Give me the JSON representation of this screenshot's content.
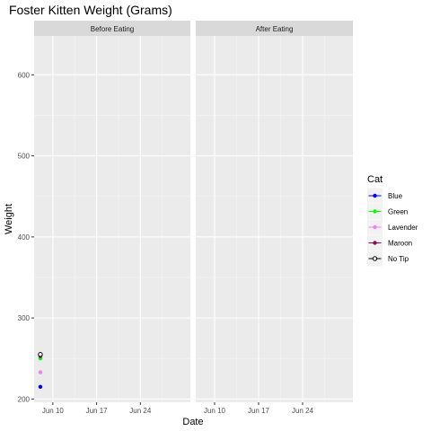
{
  "chart_data": {
    "type": "scatter",
    "title": "Foster Kitten Weight (Grams)",
    "xlabel": "Date",
    "ylabel": "Weight",
    "facets": [
      "Before Eating",
      "After Eating"
    ],
    "x_ticks": [
      "Jun 10",
      "Jun 17",
      "Jun 24"
    ],
    "y_ticks": [
      200,
      300,
      400,
      500,
      600
    ],
    "ylim": [
      196,
      648
    ],
    "xlim": [
      "2018-06-07",
      "2018-07-02"
    ],
    "grid": true,
    "legend_title": "Cat",
    "legend_position": "right",
    "series": [
      {
        "name": "Blue",
        "color": "#0000FF",
        "points": [
          {
            "facet": "Before Eating",
            "x": "2018-06-08",
            "y": 215
          }
        ]
      },
      {
        "name": "Green",
        "color": "#00FF00",
        "points": [
          {
            "facet": "Before Eating",
            "x": "2018-06-08",
            "y": 250
          }
        ]
      },
      {
        "name": "Lavender",
        "color": "#EE82EE",
        "points": [
          {
            "facet": "Before Eating",
            "x": "2018-06-08",
            "y": 233
          }
        ]
      },
      {
        "name": "Maroon",
        "color": "#8B0A50",
        "points": [
          {
            "facet": "Before Eating",
            "x": "2018-06-08",
            "y": 253
          }
        ]
      },
      {
        "name": "No Tip",
        "color": "#000000",
        "hollow": true,
        "points": [
          {
            "facet": "Before Eating",
            "x": "2018-06-08",
            "y": 255
          }
        ]
      }
    ]
  }
}
